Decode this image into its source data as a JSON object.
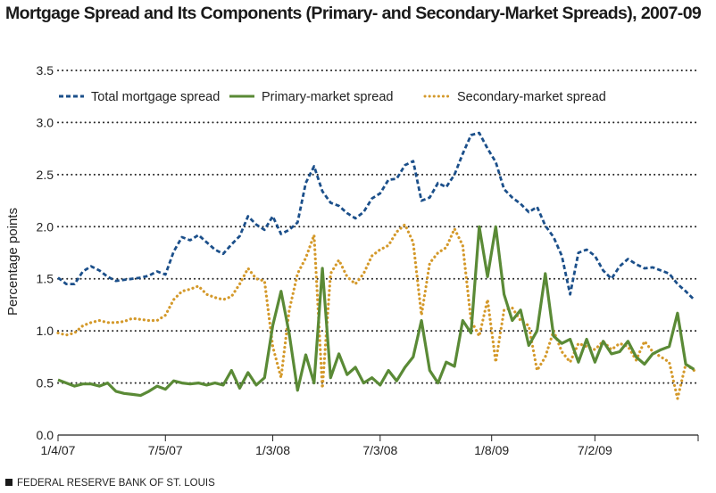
{
  "chart_data": {
    "type": "line",
    "title": "Mortgage Spread and Its Components (Primary- and Secondary-Market Spreads), 2007-09",
    "xlabel": "",
    "ylabel": "Percentage points",
    "ylim": [
      0,
      3.5
    ],
    "yticks": [
      "0.0",
      "0.5",
      "1.0",
      "1.5",
      "2.0",
      "2.5",
      "3.0",
      "3.5"
    ],
    "xticks": [
      {
        "label": "1/4/07",
        "date": "2007-01-04"
      },
      {
        "label": "7/5/07",
        "date": "2007-07-05"
      },
      {
        "label": "1/3/08",
        "date": "2008-01-03"
      },
      {
        "label": "7/3/08",
        "date": "2008-07-03"
      },
      {
        "label": "1/8/09",
        "date": "2009-01-08"
      },
      {
        "label": "7/2/09",
        "date": "2009-07-02"
      }
    ],
    "xlim": [
      "2007-01-04",
      "2009-12-24"
    ],
    "grid": "horizontal dotted",
    "legend_placement": "top",
    "x": [
      "2007-01-04",
      "2007-01-18",
      "2007-02-01",
      "2007-02-15",
      "2007-03-01",
      "2007-03-15",
      "2007-03-29",
      "2007-04-12",
      "2007-04-26",
      "2007-05-10",
      "2007-05-24",
      "2007-06-07",
      "2007-06-21",
      "2007-07-05",
      "2007-07-19",
      "2007-08-02",
      "2007-08-16",
      "2007-08-30",
      "2007-09-13",
      "2007-09-27",
      "2007-10-11",
      "2007-10-25",
      "2007-11-08",
      "2007-11-22",
      "2007-12-06",
      "2007-12-20",
      "2008-01-03",
      "2008-01-17",
      "2008-01-31",
      "2008-02-14",
      "2008-02-28",
      "2008-03-13",
      "2008-03-27",
      "2008-04-10",
      "2008-04-24",
      "2008-05-08",
      "2008-05-22",
      "2008-06-05",
      "2008-06-19",
      "2008-07-03",
      "2008-07-17",
      "2008-07-31",
      "2008-08-14",
      "2008-08-28",
      "2008-09-11",
      "2008-09-25",
      "2008-10-09",
      "2008-10-23",
      "2008-11-06",
      "2008-11-20",
      "2008-12-04",
      "2008-12-18",
      "2009-01-01",
      "2009-01-15",
      "2009-01-29",
      "2009-02-12",
      "2009-02-26",
      "2009-03-12",
      "2009-03-26",
      "2009-04-09",
      "2009-04-23",
      "2009-05-07",
      "2009-05-21",
      "2009-06-04",
      "2009-06-18",
      "2009-07-02",
      "2009-07-16",
      "2009-07-30",
      "2009-08-13",
      "2009-08-27",
      "2009-09-10",
      "2009-09-24",
      "2009-10-08",
      "2009-10-22",
      "2009-11-05",
      "2009-11-19",
      "2009-12-03",
      "2009-12-17"
    ],
    "series": [
      {
        "name": "Total mortgage spread",
        "color": "#1b4f8a",
        "style": "dashed",
        "values": [
          1.51,
          1.45,
          1.45,
          1.57,
          1.62,
          1.58,
          1.52,
          1.48,
          1.49,
          1.5,
          1.51,
          1.53,
          1.57,
          1.54,
          1.76,
          1.9,
          1.87,
          1.92,
          1.85,
          1.78,
          1.74,
          1.83,
          1.91,
          2.1,
          2.02,
          1.97,
          2.1,
          1.93,
          1.97,
          2.04,
          2.42,
          2.58,
          2.34,
          2.23,
          2.2,
          2.13,
          2.08,
          2.14,
          2.27,
          2.32,
          2.45,
          2.46,
          2.59,
          2.63,
          2.25,
          2.28,
          2.42,
          2.38,
          2.5,
          2.7,
          2.88,
          2.9,
          2.75,
          2.62,
          2.36,
          2.28,
          2.22,
          2.14,
          2.19,
          2.01,
          1.9,
          1.72,
          1.35,
          1.75,
          1.78,
          1.72,
          1.58,
          1.5,
          1.62,
          1.69,
          1.64,
          1.6,
          1.61,
          1.58,
          1.55,
          1.45,
          1.38,
          1.3
        ]
      },
      {
        "name": "Primary-market spread",
        "color": "#5a8a36",
        "style": "solid",
        "values": [
          0.53,
          0.5,
          0.47,
          0.49,
          0.49,
          0.47,
          0.5,
          0.42,
          0.4,
          0.39,
          0.38,
          0.42,
          0.47,
          0.44,
          0.52,
          0.5,
          0.49,
          0.5,
          0.48,
          0.5,
          0.48,
          0.62,
          0.45,
          0.6,
          0.48,
          0.55,
          1.05,
          1.38,
          0.97,
          0.43,
          0.77,
          0.5,
          1.6,
          0.55,
          0.78,
          0.58,
          0.65,
          0.5,
          0.55,
          0.48,
          0.62,
          0.52,
          0.65,
          0.75,
          1.1,
          0.62,
          0.5,
          0.7,
          0.66,
          1.1,
          0.98,
          2.0,
          1.52,
          2.0,
          1.35,
          1.1,
          1.2,
          0.86,
          1.0,
          1.55,
          0.95,
          0.88,
          0.92,
          0.7,
          0.92,
          0.7,
          0.9,
          0.78,
          0.8,
          0.9,
          0.75,
          0.68,
          0.78,
          0.82,
          0.85,
          1.17,
          0.68,
          0.63
        ]
      },
      {
        "name": "Secondary-market spread",
        "color": "#d4992a",
        "style": "dotted",
        "values": [
          0.98,
          0.96,
          0.98,
          1.05,
          1.08,
          1.1,
          1.08,
          1.08,
          1.09,
          1.12,
          1.11,
          1.1,
          1.1,
          1.15,
          1.3,
          1.38,
          1.4,
          1.43,
          1.35,
          1.32,
          1.3,
          1.33,
          1.45,
          1.6,
          1.5,
          1.48,
          0.85,
          0.55,
          1.2,
          1.55,
          1.7,
          1.92,
          0.45,
          1.55,
          1.68,
          1.52,
          1.45,
          1.55,
          1.72,
          1.78,
          1.82,
          1.95,
          2.02,
          1.85,
          1.15,
          1.65,
          1.75,
          1.8,
          1.98,
          1.82,
          1.1,
          0.95,
          1.3,
          0.7,
          1.2,
          1.22,
          1.1,
          1.05,
          0.62,
          0.75,
          1.0,
          0.8,
          0.7,
          0.88,
          0.85,
          0.82,
          0.9,
          0.82,
          0.88,
          0.85,
          0.72,
          0.9,
          0.8,
          0.75,
          0.7,
          0.35,
          0.68,
          0.62
        ]
      }
    ]
  },
  "footer": "FEDERAL RESERVE BANK OF ST. LOUIS"
}
